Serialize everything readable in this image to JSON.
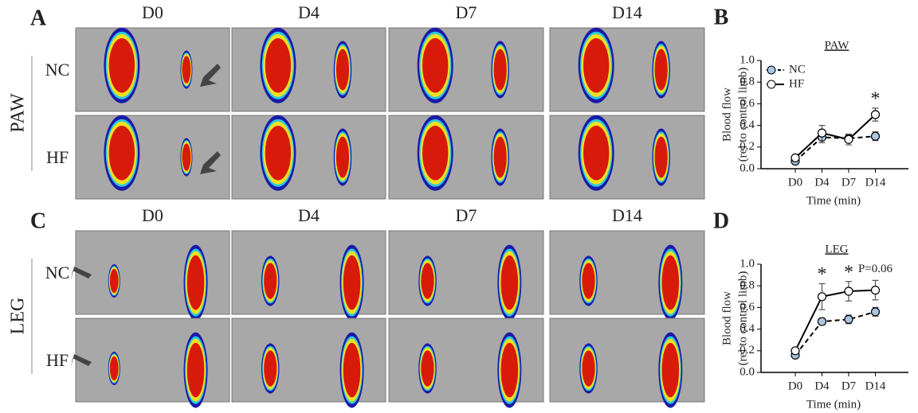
{
  "image_panels": [
    {
      "letter": "A",
      "region": "PAW",
      "columns": [
        "D0",
        "D4",
        "D7",
        "D14"
      ],
      "rows": [
        "NC",
        "HF"
      ]
    },
    {
      "letter": "C",
      "region": "LEG",
      "columns": [
        "D0",
        "D4",
        "D7",
        "D14"
      ],
      "rows": [
        "NC",
        "HF"
      ]
    }
  ],
  "chart_data": [
    {
      "type": "line",
      "letter": "B",
      "title": "PAW",
      "categories": [
        "D0",
        "D4",
        "D7",
        "D14"
      ],
      "xlabel": "Time (min)",
      "ylabel": [
        "Blood  flow",
        "(rel to control limb)"
      ],
      "ylim": [
        0,
        1
      ],
      "yticks": [
        {
          "value": 0,
          "label": "0.0"
        },
        0.2,
        0.4,
        0.6,
        0.8,
        {
          "value": 1,
          "label": "1.0"
        }
      ],
      "legend": true,
      "legend_position": "upper left",
      "series": [
        {
          "name": "NC",
          "color": "#000000",
          "marker_fill": "#a9c6e3",
          "linestyle": "dashed",
          "values": [
            0.07,
            0.29,
            0.28,
            0.3
          ],
          "errors": [
            0.02,
            0.05,
            0.03,
            0.04
          ]
        },
        {
          "name": "HF",
          "color": "#000000",
          "marker_fill": "#ffffff",
          "linestyle": "solid",
          "values": [
            0.1,
            0.33,
            0.27,
            0.5
          ],
          "errors": [
            0.02,
            0.07,
            0.05,
            0.06
          ]
        }
      ],
      "annotations": [
        {
          "x": "D14",
          "text": "*"
        }
      ]
    },
    {
      "type": "line",
      "letter": "D",
      "title": "LEG",
      "categories": [
        "D0",
        "D4",
        "D7",
        "D14"
      ],
      "xlabel": "Time (min)",
      "ylabel": [
        "Blood  flow",
        "(rel to control limb)"
      ],
      "ylim": [
        0,
        1
      ],
      "yticks": [
        {
          "value": 0,
          "label": "0.0"
        },
        0.2,
        0.4,
        0.6,
        0.8,
        {
          "value": 1,
          "label": "1.0"
        }
      ],
      "legend": false,
      "series": [
        {
          "name": "NC",
          "color": "#000000",
          "marker_fill": "#a9c6e3",
          "linestyle": "dashed",
          "values": [
            0.16,
            0.47,
            0.49,
            0.56
          ],
          "errors": [
            0.02,
            0.03,
            0.04,
            0.04
          ]
        },
        {
          "name": "HF",
          "color": "#000000",
          "marker_fill": "#ffffff",
          "linestyle": "solid",
          "values": [
            0.2,
            0.7,
            0.75,
            0.76
          ],
          "errors": [
            0.02,
            0.12,
            0.09,
            0.09
          ]
        }
      ],
      "annotations": [
        {
          "x": "D4",
          "text": "*"
        },
        {
          "x": "D7",
          "text": "*"
        },
        {
          "x": "D14",
          "text": "P=0.06"
        }
      ]
    }
  ]
}
